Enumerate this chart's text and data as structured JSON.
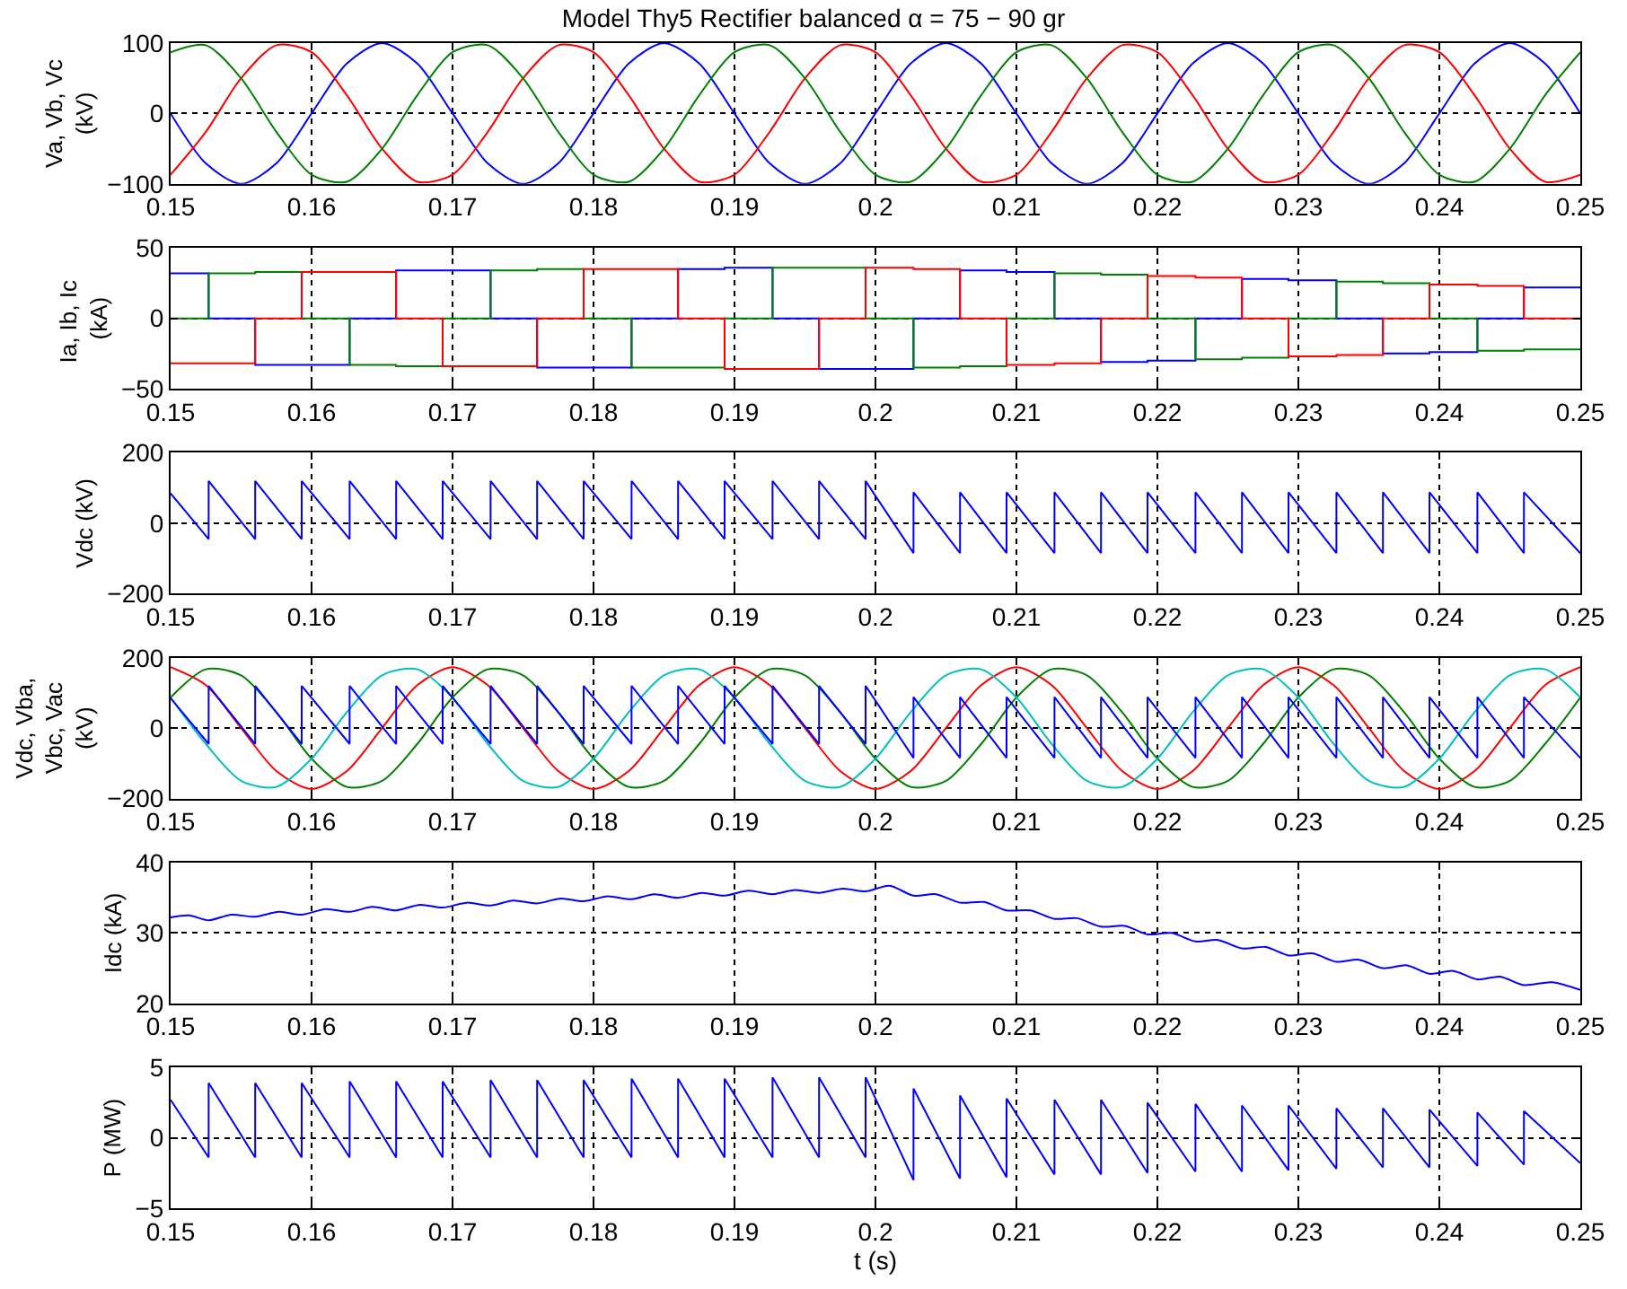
{
  "chart_data": [
    {
      "type": "line",
      "title": "Model Thy5 Rectifier balanced α = 75 − 90 gr",
      "ylabel": "Va, Vb, Vc (kV)",
      "xlim": [
        0.15,
        0.25
      ],
      "xticks": [
        0.15,
        0.16,
        0.17,
        0.18,
        0.19,
        0.2,
        0.21,
        0.22,
        0.23,
        0.24,
        0.25
      ],
      "ylim": [
        -100,
        100
      ],
      "yticks": [
        -100,
        0,
        100
      ],
      "grid": true,
      "marker": "none",
      "line_style": "solid",
      "x": [
        0.15,
        0.1525,
        0.155,
        0.1575,
        0.16,
        0.1625,
        0.165,
        0.1675,
        0.17,
        0.1725,
        0.175,
        0.1775,
        0.18,
        0.1825,
        0.185,
        0.1875,
        0.19,
        0.1925,
        0.195,
        0.1975,
        0.2,
        0.2025,
        0.205,
        0.2075,
        0.21,
        0.2125,
        0.215,
        0.2175,
        0.22,
        0.2225,
        0.225,
        0.2275,
        0.23,
        0.2325,
        0.235,
        0.2375,
        0.24,
        0.2425,
        0.245,
        0.2475,
        0.25
      ],
      "series": [
        {
          "color": "#0000ff",
          "values": [
            0,
            -71,
            -100,
            -71,
            0,
            71,
            100,
            71,
            0,
            -71,
            -100,
            -71,
            0,
            71,
            100,
            71,
            0,
            -71,
            -100,
            -71,
            0,
            71,
            100,
            71,
            0,
            -71,
            -100,
            -71,
            0,
            71,
            100,
            71,
            0,
            -71,
            -100,
            -71,
            0,
            71,
            100,
            71,
            0
          ]
        },
        {
          "color": "#ff0000",
          "values": [
            -87,
            -26,
            50,
            97,
            87,
            26,
            -50,
            -97,
            -87,
            -26,
            50,
            97,
            87,
            26,
            -50,
            -97,
            -87,
            -26,
            50,
            97,
            87,
            26,
            -50,
            -97,
            -87,
            -26,
            50,
            97,
            87,
            26,
            -50,
            -97,
            -87,
            -26,
            50,
            97,
            87,
            26,
            -50,
            -97,
            -87
          ]
        },
        {
          "color": "#008000",
          "values": [
            87,
            97,
            50,
            -26,
            -87,
            -97,
            -50,
            26,
            87,
            97,
            50,
            -26,
            -87,
            -97,
            -50,
            26,
            87,
            97,
            50,
            -26,
            -87,
            -97,
            -50,
            26,
            87,
            97,
            50,
            -26,
            -87,
            -97,
            -50,
            26,
            87,
            97,
            50,
            -26,
            -87,
            -97,
            -50,
            26,
            87
          ]
        }
      ]
    },
    {
      "type": "step",
      "ylabel": "Ia, Ib, Ic  (kA)",
      "xlim": [
        0.15,
        0.25
      ],
      "xticks": [
        0.15,
        0.16,
        0.17,
        0.18,
        0.19,
        0.2,
        0.21,
        0.22,
        0.23,
        0.24,
        0.25
      ],
      "ylim": [
        -50,
        50
      ],
      "yticks": [
        -50,
        0,
        50
      ],
      "grid": true,
      "marker": "none",
      "line_style": "solid",
      "x": [
        0.15,
        0.1527,
        0.156,
        0.1593,
        0.1627,
        0.166,
        0.1693,
        0.1727,
        0.176,
        0.1793,
        0.1827,
        0.186,
        0.1893,
        0.1927,
        0.196,
        0.1993,
        0.2027,
        0.206,
        0.2093,
        0.2127,
        0.216,
        0.2193,
        0.2227,
        0.226,
        0.2293,
        0.2327,
        0.236,
        0.2393,
        0.2427,
        0.246,
        0.25
      ],
      "series": [
        {
          "color": "#0000ff",
          "values": [
            32,
            0,
            -33,
            -33,
            0,
            34,
            34,
            0,
            -35,
            -35,
            0,
            35,
            36,
            0,
            -36,
            -36,
            0,
            34,
            33,
            0,
            -31,
            -30,
            0,
            28,
            27,
            0,
            -25,
            -24,
            0,
            22,
            22
          ]
        },
        {
          "color": "#008000",
          "values": [
            0,
            32,
            33,
            0,
            -33,
            -34,
            0,
            34,
            35,
            0,
            -35,
            -35,
            0,
            36,
            36,
            0,
            -35,
            -34,
            0,
            32,
            31,
            0,
            -29,
            -28,
            0,
            26,
            25,
            0,
            -23,
            -22,
            -22
          ]
        },
        {
          "color": "#ff0000",
          "values": [
            -32,
            -32,
            0,
            33,
            33,
            0,
            -34,
            -34,
            0,
            35,
            35,
            0,
            -36,
            -36,
            0,
            36,
            35,
            0,
            -33,
            -32,
            0,
            30,
            29,
            0,
            -27,
            -26,
            0,
            24,
            23,
            0,
            0
          ]
        }
      ]
    },
    {
      "type": "line",
      "ylabel": "Vdc (kV)",
      "xlim": [
        0.15,
        0.25
      ],
      "xticks": [
        0.15,
        0.16,
        0.17,
        0.18,
        0.19,
        0.2,
        0.21,
        0.22,
        0.23,
        0.24,
        0.25
      ],
      "ylim": [
        -200,
        200
      ],
      "yticks": [
        -200,
        0,
        200
      ],
      "grid": true,
      "marker": "none",
      "line_style": "solid",
      "x": [
        0.15,
        0.1527,
        0.1527,
        0.156,
        0.156,
        0.1593,
        0.1593,
        0.1627,
        0.1627,
        0.166,
        0.166,
        0.1693,
        0.1693,
        0.1727,
        0.1727,
        0.176,
        0.176,
        0.1793,
        0.1793,
        0.1827,
        0.1827,
        0.186,
        0.186,
        0.1893,
        0.1893,
        0.1927,
        0.1927,
        0.196,
        0.196,
        0.1993,
        0.1993,
        0.2027,
        0.2027,
        0.206,
        0.206,
        0.2093,
        0.2093,
        0.2127,
        0.2127,
        0.216,
        0.216,
        0.2193,
        0.2193,
        0.2227,
        0.2227,
        0.226,
        0.226,
        0.2293,
        0.2293,
        0.2327,
        0.2327,
        0.236,
        0.236,
        0.2393,
        0.2393,
        0.2427,
        0.2427,
        0.246,
        0.246,
        0.25
      ],
      "series": [
        {
          "color": "#0000ff",
          "values": [
            85,
            -45,
            120,
            -45,
            120,
            -45,
            120,
            -45,
            120,
            -45,
            120,
            -45,
            120,
            -45,
            120,
            -45,
            120,
            -45,
            120,
            -45,
            120,
            -45,
            120,
            -45,
            120,
            -45,
            120,
            -45,
            120,
            -45,
            120,
            -85,
            88,
            -85,
            88,
            -85,
            88,
            -85,
            88,
            -85,
            88,
            -85,
            88,
            -85,
            88,
            -85,
            88,
            -85,
            88,
            -85,
            88,
            -85,
            88,
            -85,
            88,
            -85,
            88,
            -85,
            88,
            -85
          ]
        }
      ]
    },
    {
      "type": "line",
      "ylabel": "Vdc, Vba, Vbc, Vac (kV)",
      "xlim": [
        0.15,
        0.25
      ],
      "xticks": [
        0.15,
        0.16,
        0.17,
        0.18,
        0.19,
        0.2,
        0.21,
        0.22,
        0.23,
        0.24,
        0.25
      ],
      "ylim": [
        -200,
        200
      ],
      "yticks": [
        -200,
        0,
        200
      ],
      "grid": true,
      "marker": "none",
      "line_style": "solid",
      "x": [
        0.15,
        0.1525,
        0.155,
        0.1575,
        0.16,
        0.1625,
        0.165,
        0.1675,
        0.17,
        0.1725,
        0.175,
        0.1775,
        0.18,
        0.1825,
        0.185,
        0.1875,
        0.19,
        0.1925,
        0.195,
        0.1975,
        0.2,
        0.2025,
        0.205,
        0.2075,
        0.21,
        0.2125,
        0.215,
        0.2175,
        0.22,
        0.2225,
        0.225,
        0.2275,
        0.23,
        0.2325,
        0.235,
        0.2375,
        0.24,
        0.2425,
        0.245,
        0.2475,
        0.25
      ],
      "series": [
        {
          "color": "#ff0000",
          "values": [
            173,
            122,
            0,
            -122,
            -173,
            -122,
            0,
            122,
            173,
            122,
            0,
            -122,
            -173,
            -122,
            0,
            122,
            173,
            122,
            0,
            -122,
            -173,
            -122,
            0,
            122,
            173,
            122,
            0,
            -122,
            -173,
            -122,
            0,
            122,
            173,
            122,
            0,
            -122,
            -173,
            -122,
            0,
            122,
            173
          ]
        },
        {
          "color": "#008000",
          "values": [
            87,
            167,
            150,
            45,
            -87,
            -167,
            -150,
            -45,
            87,
            167,
            150,
            45,
            -87,
            -167,
            -150,
            -45,
            87,
            167,
            150,
            45,
            -87,
            -167,
            -150,
            -45,
            87,
            167,
            150,
            45,
            -87,
            -167,
            -150,
            -45,
            87,
            167,
            150,
            45,
            -87,
            -167,
            -150,
            -45,
            87
          ]
        },
        {
          "color": "#00bfbf",
          "values": [
            87,
            -45,
            -150,
            -167,
            -87,
            45,
            150,
            167,
            87,
            -45,
            -150,
            -167,
            -87,
            45,
            150,
            167,
            87,
            -45,
            -150,
            -167,
            -87,
            45,
            150,
            167,
            87,
            -45,
            -150,
            -167,
            -87,
            45,
            150,
            167,
            87,
            -45,
            -150,
            -167,
            -87,
            45,
            150,
            167,
            87
          ]
        },
        {
          "color": "#0000ff",
          "x": [
            0.15,
            0.1527,
            0.1527,
            0.156,
            0.156,
            0.1593,
            0.1593,
            0.1627,
            0.1627,
            0.166,
            0.166,
            0.1693,
            0.1693,
            0.1727,
            0.1727,
            0.176,
            0.176,
            0.1793,
            0.1793,
            0.1827,
            0.1827,
            0.186,
            0.186,
            0.1893,
            0.1893,
            0.1927,
            0.1927,
            0.196,
            0.196,
            0.1993,
            0.1993,
            0.2027,
            0.2027,
            0.206,
            0.206,
            0.2093,
            0.2093,
            0.2127,
            0.2127,
            0.216,
            0.216,
            0.2193,
            0.2193,
            0.2227,
            0.2227,
            0.226,
            0.226,
            0.2293,
            0.2293,
            0.2327,
            0.2327,
            0.236,
            0.236,
            0.2393,
            0.2393,
            0.2427,
            0.2427,
            0.246,
            0.246,
            0.25
          ],
          "values": [
            85,
            -45,
            120,
            -45,
            120,
            -45,
            120,
            -45,
            120,
            -45,
            120,
            -45,
            120,
            -45,
            120,
            -45,
            120,
            -45,
            120,
            -45,
            120,
            -45,
            120,
            -45,
            120,
            -45,
            120,
            -45,
            120,
            -45,
            120,
            -85,
            88,
            -85,
            88,
            -85,
            88,
            -85,
            88,
            -85,
            88,
            -85,
            88,
            -85,
            88,
            -85,
            88,
            -85,
            88,
            -85,
            88,
            -85,
            88,
            -85,
            88,
            -85,
            88,
            -85,
            88,
            -85
          ]
        }
      ]
    },
    {
      "type": "line",
      "ylabel": "Idc (kA)",
      "xlim": [
        0.15,
        0.25
      ],
      "xticks": [
        0.15,
        0.16,
        0.17,
        0.18,
        0.19,
        0.2,
        0.21,
        0.22,
        0.23,
        0.24,
        0.25
      ],
      "ylim": [
        20,
        40
      ],
      "yticks": [
        20,
        30,
        40
      ],
      "grid": true,
      "marker": "none",
      "line_style": "solid",
      "x": [
        0.15,
        0.1513,
        0.1527,
        0.1543,
        0.156,
        0.1577,
        0.1593,
        0.161,
        0.1627,
        0.1643,
        0.166,
        0.1677,
        0.1693,
        0.171,
        0.1727,
        0.1743,
        0.176,
        0.1777,
        0.1793,
        0.181,
        0.1827,
        0.1843,
        0.186,
        0.1877,
        0.1893,
        0.191,
        0.1927,
        0.1943,
        0.196,
        0.1977,
        0.1993,
        0.201,
        0.2027,
        0.2043,
        0.206,
        0.2077,
        0.2093,
        0.211,
        0.2127,
        0.2143,
        0.216,
        0.2177,
        0.2193,
        0.221,
        0.2227,
        0.2243,
        0.226,
        0.2277,
        0.2293,
        0.231,
        0.2327,
        0.2343,
        0.236,
        0.2377,
        0.2393,
        0.241,
        0.2427,
        0.2443,
        0.246,
        0.248,
        0.25
      ],
      "series": [
        {
          "color": "#0000ff",
          "values": [
            32.2,
            32.5,
            31.8,
            32.6,
            32.3,
            33.0,
            32.6,
            33.4,
            33.0,
            33.7,
            33.2,
            34.0,
            33.6,
            34.3,
            33.9,
            34.6,
            34.2,
            34.9,
            34.5,
            35.2,
            34.8,
            35.5,
            35.0,
            35.7,
            35.3,
            36.0,
            35.5,
            36.1,
            35.7,
            36.3,
            35.9,
            36.7,
            35.3,
            35.5,
            34.3,
            34.4,
            33.2,
            33.2,
            32.0,
            32.1,
            30.9,
            31.0,
            29.8,
            30.0,
            28.8,
            29.0,
            27.8,
            28.0,
            26.8,
            27.1,
            25.9,
            26.2,
            25.0,
            25.4,
            24.2,
            24.6,
            23.4,
            23.8,
            22.6,
            23.0,
            21.9
          ]
        }
      ]
    },
    {
      "type": "line",
      "ylabel": "P (MW)",
      "xlabel": "t (s)",
      "xlim": [
        0.15,
        0.25
      ],
      "xticks": [
        0.15,
        0.16,
        0.17,
        0.18,
        0.19,
        0.2,
        0.21,
        0.22,
        0.23,
        0.24,
        0.25
      ],
      "ylim": [
        -5,
        5
      ],
      "yticks": [
        -5,
        0,
        5
      ],
      "grid": true,
      "marker": "none",
      "line_style": "solid",
      "x": [
        0.15,
        0.1527,
        0.1527,
        0.156,
        0.156,
        0.1593,
        0.1593,
        0.1627,
        0.1627,
        0.166,
        0.166,
        0.1693,
        0.1693,
        0.1727,
        0.1727,
        0.176,
        0.176,
        0.1793,
        0.1793,
        0.1827,
        0.1827,
        0.186,
        0.186,
        0.1893,
        0.1893,
        0.1927,
        0.1927,
        0.196,
        0.196,
        0.1993,
        0.1993,
        0.2027,
        0.2027,
        0.206,
        0.206,
        0.2093,
        0.2093,
        0.2127,
        0.2127,
        0.216,
        0.216,
        0.2193,
        0.2193,
        0.2227,
        0.2227,
        0.226,
        0.226,
        0.2293,
        0.2293,
        0.2327,
        0.2327,
        0.236,
        0.236,
        0.2393,
        0.2393,
        0.2427,
        0.2427,
        0.246,
        0.246,
        0.25
      ],
      "series": [
        {
          "color": "#0000ff",
          "values": [
            2.7,
            -1.4,
            3.9,
            -1.4,
            3.9,
            -1.4,
            3.9,
            -1.4,
            4.0,
            -1.4,
            4.0,
            -1.4,
            4.0,
            -1.4,
            4.1,
            -1.4,
            4.1,
            -1.4,
            4.1,
            -1.4,
            4.2,
            -1.4,
            4.2,
            -1.4,
            4.2,
            -1.4,
            4.3,
            -1.4,
            4.3,
            -1.4,
            4.3,
            -3.0,
            3.5,
            -2.9,
            3.0,
            -2.8,
            2.8,
            -2.6,
            2.7,
            -2.6,
            2.7,
            -2.5,
            2.5,
            -2.4,
            2.4,
            -2.4,
            2.3,
            -2.3,
            2.3,
            -2.2,
            2.1,
            -2.1,
            2.1,
            -2.1,
            2.0,
            -2.0,
            1.8,
            -1.9,
            1.9,
            -1.8
          ]
        }
      ]
    }
  ]
}
